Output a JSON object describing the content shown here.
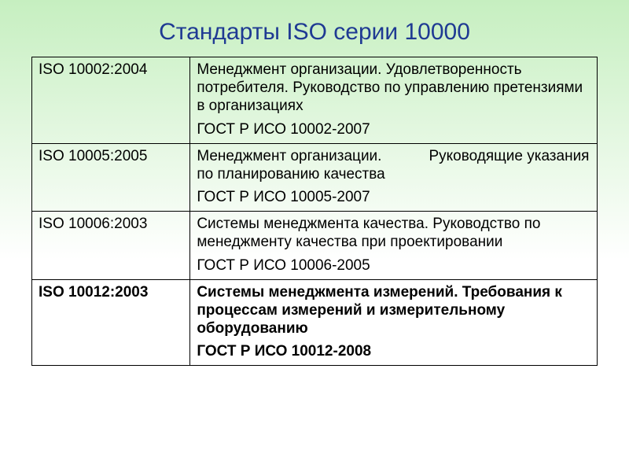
{
  "background": {
    "top_color": "#c6efc0",
    "bottom_color": "#ffffff",
    "gradient_stop_pct": 55
  },
  "title": {
    "text": "Стандарты ISO серии 10000",
    "color": "#1f3a93",
    "fontsize": 30
  },
  "table": {
    "col_widths_pct": [
      28,
      72
    ],
    "border_color": "#000000",
    "cell_fontsize": 19,
    "rows": [
      {
        "code": "ISO 10002:2004",
        "desc": "Менеджмент организации. Удовлетворенность потребителя. Руководство по управлению претензиями в организациях",
        "gost": "ГОСТ Р ИСО 10002-2007",
        "bold": false,
        "insert_gap_after_first_sentence": false
      },
      {
        "code": "ISO 10005:2005",
        "desc": "Менеджмент организации. Руководящие указания по планированию качества",
        "gost": "ГОСТ Р ИСО 10005-2007",
        "bold": false,
        "insert_gap_after_first_sentence": true
      },
      {
        "code": "ISO 10006:2003",
        "desc": "Системы менеджмента качества. Руководство по менеджменту качества при проектировании",
        "gost": "ГОСТ Р ИСО 10006-2005",
        "bold": false,
        "insert_gap_after_first_sentence": false
      },
      {
        "code": "ISO 10012:2003",
        "desc": "Системы менеджмента измерений. Требования к процессам измерений и измерительному оборудованию",
        "gost": "ГОСТ Р ИСО 10012-2008",
        "bold": true,
        "insert_gap_after_first_sentence": false
      }
    ]
  }
}
